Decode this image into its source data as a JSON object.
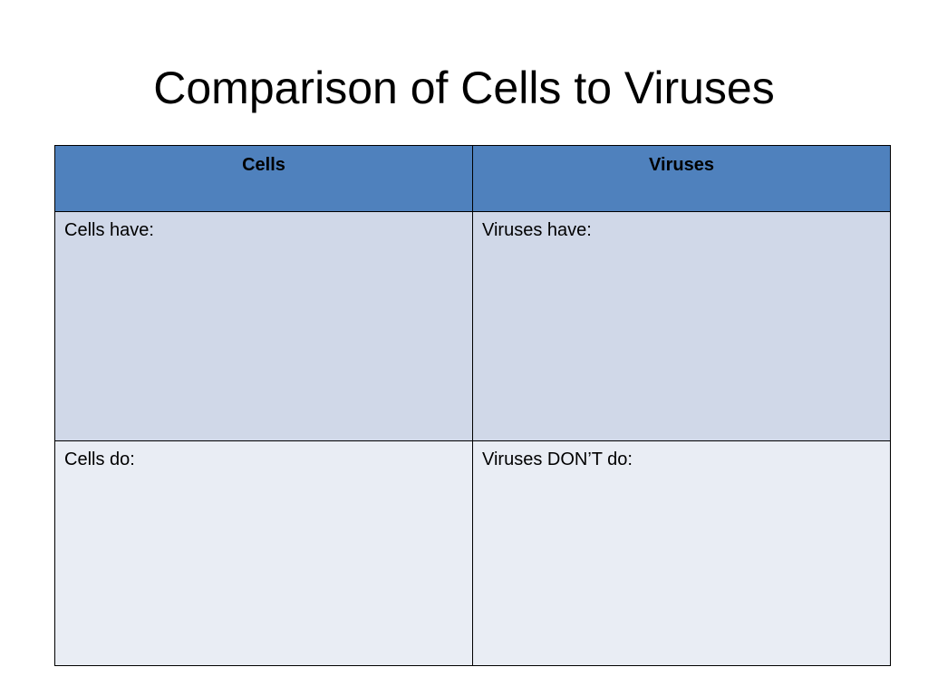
{
  "slide": {
    "title": "Comparison of Cells to Viruses"
  },
  "table": {
    "headers": [
      "Cells",
      "Viruses"
    ],
    "rows": [
      [
        "Cells have:",
        "Viruses have:"
      ],
      [
        "Cells do:",
        "Viruses DON’T do:"
      ]
    ]
  },
  "colors": {
    "header_fill": "#4f81bd",
    "row1_fill": "#d0d8e8",
    "row2_fill": "#e9edf4",
    "border": "#000000"
  }
}
